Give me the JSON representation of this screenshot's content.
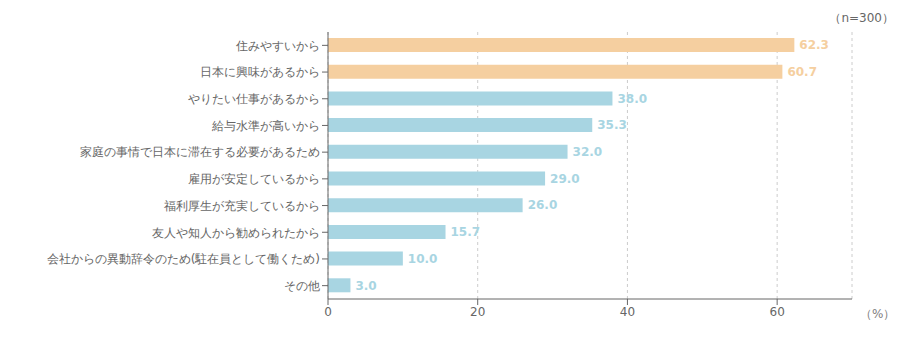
{
  "chart_data": {
    "type": "bar",
    "orientation": "horizontal",
    "categories": [
      "住みやすいから",
      "日本に興味があるから",
      "やりたい仕事があるから",
      "給与水準が高いから",
      "家庭の事情で日本に滞在する必要があるため",
      "雇用が安定しているから",
      "福利厚生が充実しているから",
      "友人や知人から勧められたから",
      "会社からの異動辞令のため(駐在員として働くため)",
      "その他"
    ],
    "values": [
      62.3,
      60.7,
      38.0,
      35.3,
      32.0,
      29.0,
      26.0,
      15.7,
      10.0,
      3.0
    ],
    "value_labels": [
      "62.3",
      "60.7",
      "38.0",
      "35.3",
      "32.0",
      "29.0",
      "26.0",
      "15.7",
      "10.0",
      "3.0"
    ],
    "colors": [
      "#F5CFA0",
      "#F5CFA0",
      "#A8D5E2",
      "#A8D5E2",
      "#A8D5E2",
      "#A8D5E2",
      "#A8D5E2",
      "#A8D5E2",
      "#A8D5E2",
      "#A8D5E2"
    ],
    "xlim": [
      0,
      70
    ],
    "xticks": [
      0,
      20,
      40,
      60
    ],
    "x_label": "（%）",
    "annotations": [
      "（n=300）"
    ],
    "grid": true,
    "data_labels": true
  }
}
